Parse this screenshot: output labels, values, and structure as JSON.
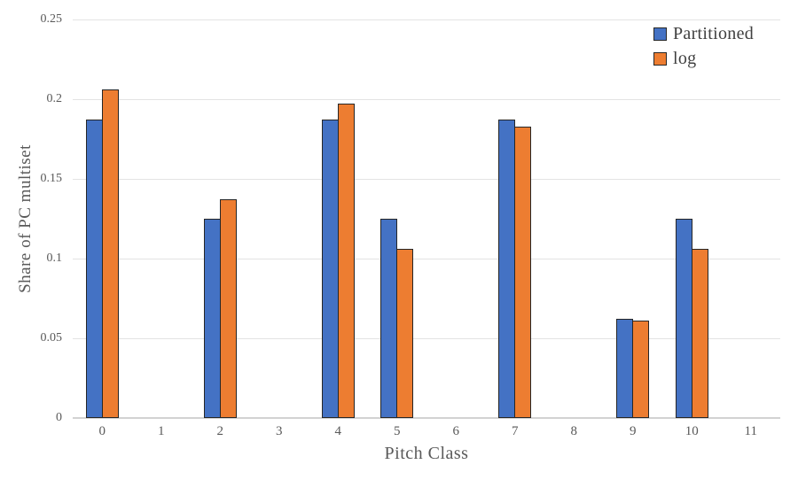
{
  "chart_data": {
    "type": "bar",
    "title": "",
    "xlabel": "Pitch Class",
    "ylabel": "Share of PC multiset",
    "categories": [
      "0",
      "1",
      "2",
      "3",
      "4",
      "5",
      "6",
      "7",
      "8",
      "9",
      "10",
      "11"
    ],
    "series": [
      {
        "name": "Partitioned",
        "color": "#4472C4",
        "values": [
          0.1875,
          0,
          0.125,
          0,
          0.1875,
          0.125,
          0,
          0.1875,
          0,
          0.0625,
          0.125,
          0
        ]
      },
      {
        "name": "log",
        "color": "#ED7D31",
        "values": [
          0.206,
          0,
          0.137,
          0,
          0.197,
          0.106,
          0,
          0.183,
          0,
          0.061,
          0.106,
          0
        ]
      }
    ],
    "ylim": [
      0,
      0.25
    ],
    "yticks": [
      {
        "value": 0,
        "label": "0"
      },
      {
        "value": 0.05,
        "label": "0.05"
      },
      {
        "value": 0.1,
        "label": "0.1"
      },
      {
        "value": 0.15,
        "label": "0.15"
      },
      {
        "value": 0.2,
        "label": "0.2"
      },
      {
        "value": 0.25,
        "label": "0.25"
      }
    ],
    "grid": true,
    "legend_position": "top-right",
    "styles": {
      "bar_border": "#262626",
      "gridline": "#E3E3E3",
      "axis_line": "#D2D2D2",
      "axis_text": "#595959",
      "legend_text": "#404040",
      "background": "#FFFFFF"
    }
  }
}
